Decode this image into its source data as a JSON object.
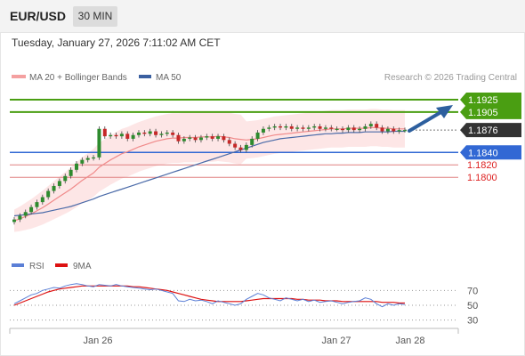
{
  "header": {
    "symbol": "EUR/USD",
    "timeframe": "30 MIN",
    "datetime": "Tuesday, January 27, 2026 7:11:02 AM CET"
  },
  "legend": {
    "ma20": "MA 20 + Bollinger Bands",
    "ma50": "MA 50",
    "credit": "Research © 2026 Trading Central"
  },
  "rsi_legend": {
    "rsi": "RSI",
    "ma": "9MA"
  },
  "colors": {
    "green": "#4a9e12",
    "blue": "#3268d4",
    "red": "#d22",
    "candle_up": "#2e8b2e",
    "candle_down": "#c62828",
    "current_bg": "#333333",
    "ma20": "#f08a8a",
    "ma50": "#4a6aa8",
    "band_fill": "#fde2e2"
  },
  "chart_data": {
    "type": "candlestick",
    "title": "EUR/USD 30 MIN",
    "levels": [
      {
        "value": 1.1925,
        "label": "1.1925",
        "kind": "resistance"
      },
      {
        "value": 1.1905,
        "label": "1.1905",
        "kind": "resistance"
      },
      {
        "value": 1.1876,
        "label": "1.1876",
        "kind": "current"
      },
      {
        "value": 1.184,
        "label": "1.1840",
        "kind": "pivot"
      },
      {
        "value": 1.182,
        "label": "1.1820",
        "kind": "support"
      },
      {
        "value": 1.18,
        "label": "1.1800",
        "kind": "support"
      }
    ],
    "price_ylim": [
      1.171,
      1.1945
    ],
    "x_ticks": [
      "Jan 26",
      "Jan 27",
      "Jan 28"
    ],
    "closes": [
      1.1732,
      1.1738,
      1.1744,
      1.1752,
      1.176,
      1.1768,
      1.1778,
      1.1786,
      1.1794,
      1.1802,
      1.1812,
      1.1822,
      1.1828,
      1.1831,
      1.1832,
      1.1878,
      1.1866,
      1.1868,
      1.1866,
      1.187,
      1.1862,
      1.1868,
      1.1872,
      1.187,
      1.1874,
      1.1868,
      1.187,
      1.1872,
      1.1868,
      1.1858,
      1.1862,
      1.1864,
      1.186,
      1.1864,
      1.1866,
      1.1862,
      1.1866,
      1.186,
      1.1854,
      1.1848,
      1.1844,
      1.1852,
      1.1862,
      1.1872,
      1.1878,
      1.188,
      1.1882,
      1.188,
      1.1882,
      1.1878,
      1.188,
      1.1878,
      1.188,
      1.1882,
      1.1878,
      1.188,
      1.1878,
      1.1878,
      1.1876,
      1.188,
      1.1876,
      1.1878,
      1.1882,
      1.1886,
      1.188,
      1.1874,
      1.1878,
      1.1874,
      1.1876,
      1.1876
    ],
    "ma20": [
      1.173,
      1.1733,
      1.1737,
      1.1741,
      1.1746,
      1.1751,
      1.1757,
      1.1763,
      1.1769,
      1.1775,
      1.1781,
      1.1788,
      1.1795,
      1.1801,
      1.1807,
      1.1816,
      1.1822,
      1.1828,
      1.1833,
      1.1838,
      1.1841,
      1.1845,
      1.1849,
      1.1852,
      1.1855,
      1.1858,
      1.186,
      1.1862,
      1.1863,
      1.1863,
      1.1864,
      1.1864,
      1.1864,
      1.1865,
      1.1865,
      1.1865,
      1.1866,
      1.1865,
      1.1864,
      1.1862,
      1.1861,
      1.186,
      1.1861,
      1.1862,
      1.1864,
      1.1866,
      1.1868,
      1.1869,
      1.187,
      1.1871,
      1.1872,
      1.1873,
      1.1874,
      1.1875,
      1.1876,
      1.1877,
      1.1878,
      1.1878,
      1.1878,
      1.1879,
      1.1879,
      1.1879,
      1.1879,
      1.188,
      1.188,
      1.1879,
      1.1879,
      1.1878,
      1.1878,
      1.1878
    ],
    "ma50": [
      1.1738,
      1.1739,
      1.174,
      1.1741,
      1.1742,
      1.1743,
      1.1745,
      1.1747,
      1.1749,
      1.1751,
      1.1753,
      1.1756,
      1.1759,
      1.1762,
      1.1765,
      1.1769,
      1.1772,
      1.1775,
      1.1778,
      1.1781,
      1.1784,
      1.1787,
      1.179,
      1.1793,
      1.1796,
      1.1799,
      1.1802,
      1.1805,
      1.1808,
      1.1811,
      1.1814,
      1.1817,
      1.182,
      1.1823,
      1.1826,
      1.1829,
      1.1832,
      1.1835,
      1.1838,
      1.1841,
      1.1844,
      1.1847,
      1.185,
      1.1853,
      1.1856,
      1.1858,
      1.186,
      1.1862,
      1.1863,
      1.1864,
      1.1865,
      1.1866,
      1.1867,
      1.1868,
      1.1869,
      1.187,
      1.187,
      1.1871,
      1.1871,
      1.1872,
      1.1872,
      1.1872,
      1.1873,
      1.1873,
      1.1873,
      1.1873,
      1.1873,
      1.1874,
      1.1874,
      1.1874
    ],
    "rsi_levels": [
      70,
      50,
      30
    ],
    "rsi_ylim": [
      20,
      80
    ],
    "rsi": [
      52,
      56,
      60,
      64,
      66,
      70,
      72,
      74,
      73,
      76,
      78,
      79,
      78,
      76,
      75,
      78,
      77,
      76,
      78,
      76,
      75,
      74,
      73,
      72,
      71,
      72,
      70,
      68,
      66,
      56,
      55,
      58,
      56,
      57,
      55,
      52,
      56,
      54,
      52,
      50,
      52,
      58,
      62,
      66,
      64,
      60,
      58,
      56,
      60,
      58,
      56,
      58,
      55,
      57,
      54,
      55,
      56,
      54,
      52,
      54,
      55,
      56,
      60,
      58,
      52,
      48,
      52,
      50,
      52,
      51
    ],
    "rsi_ma": [
      50,
      53,
      56,
      59,
      62,
      65,
      68,
      70,
      72,
      73,
      74,
      75,
      76,
      76,
      76,
      76,
      76,
      76,
      76,
      76,
      76,
      75,
      75,
      74,
      73,
      72,
      71,
      70,
      68,
      66,
      64,
      62,
      60,
      58,
      57,
      56,
      55,
      55,
      55,
      55,
      55,
      56,
      57,
      58,
      59,
      59,
      59,
      59,
      59,
      59,
      58,
      58,
      57,
      57,
      57,
      56,
      56,
      56,
      55,
      55,
      55,
      55,
      55,
      55,
      55,
      54,
      54,
      54,
      53,
      53
    ]
  }
}
